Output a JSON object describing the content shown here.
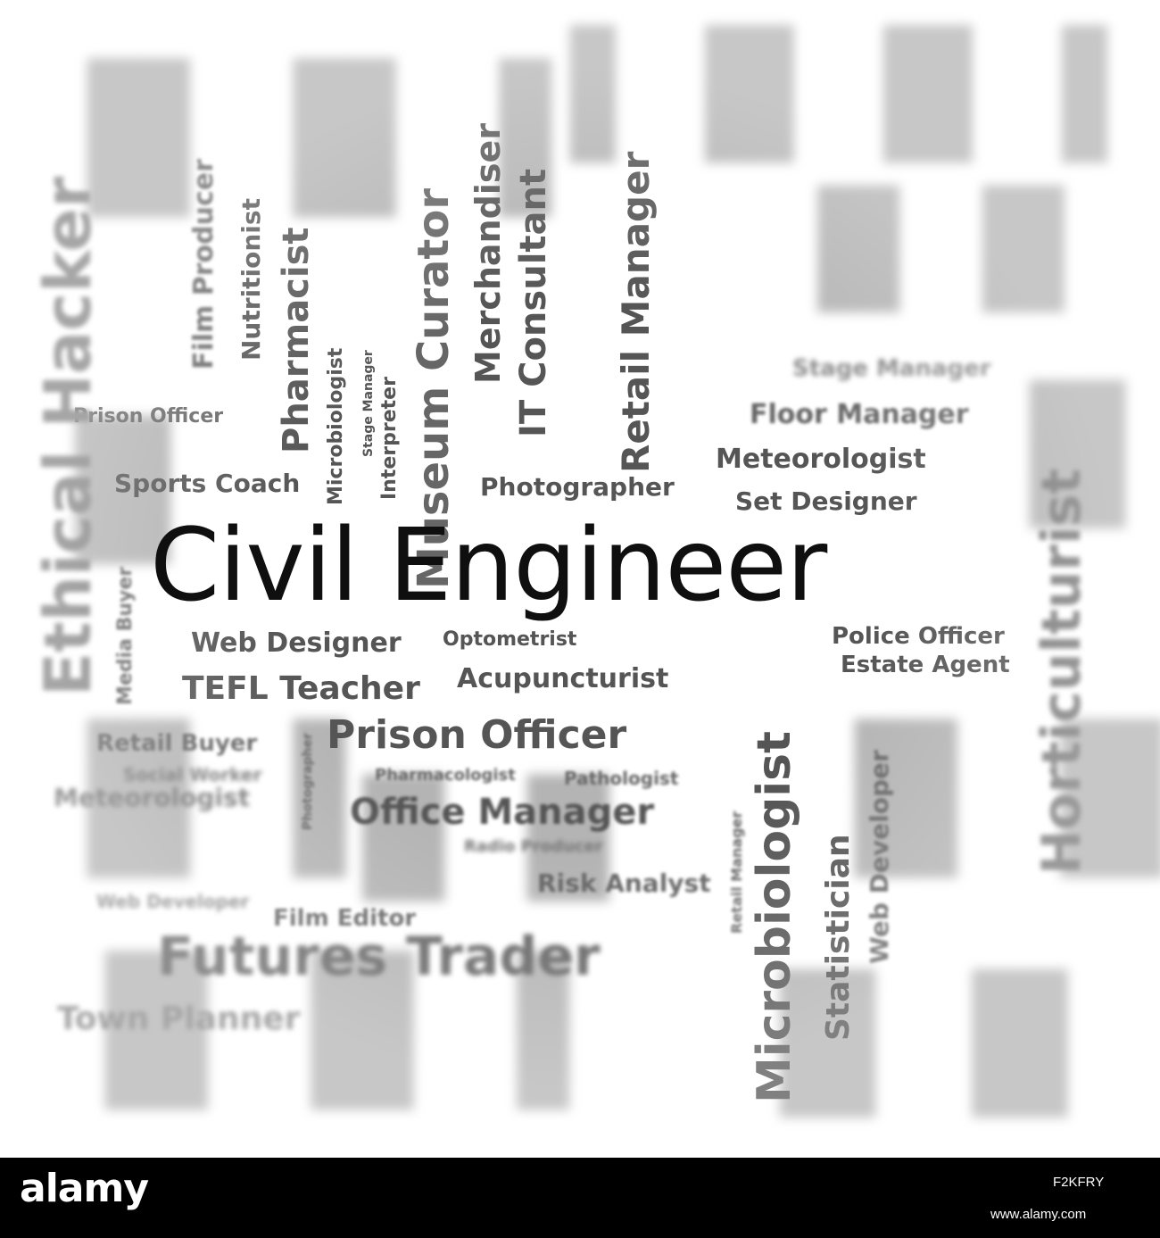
{
  "main_phrase": "Civil Engineer",
  "horizontal_words": [
    "Photographer",
    "Floor Manager",
    "Meteorologist",
    "Set Designer",
    "Prison Officer",
    "Sports Coach",
    "Web Designer",
    "Optometrist",
    "Acupuncturist",
    "TEFL Teacher",
    "Police Officer",
    "Estate Agent",
    "Prison Officer",
    "Retail Buyer",
    "Social Worker",
    "Pharmacologist",
    "Pathologist",
    "Office Manager",
    "Radio Producer",
    "Risk Analyst",
    "Film Editor",
    "Futures Trader",
    "Town Planner",
    "Meteorologist",
    "Stage Manager",
    "Web Developer"
  ],
  "vertical_words": [
    "Museum Curator",
    "Merchandiser",
    "IT Consultant",
    "Retail Manager",
    "Microbiologist",
    "Microbiologist",
    "Interpreter",
    "Stage Manager",
    "Pharmacist",
    "Nutritionist",
    "Film Producer",
    "Statistician",
    "Web Developer",
    "Retail Manager",
    "Horticulturist",
    "Media Buyer",
    "Ethical Hacker",
    "Photographer"
  ],
  "watermark": {
    "logo": "alamy",
    "image_id": "F2KFRY",
    "site": "www.alamy.com"
  }
}
